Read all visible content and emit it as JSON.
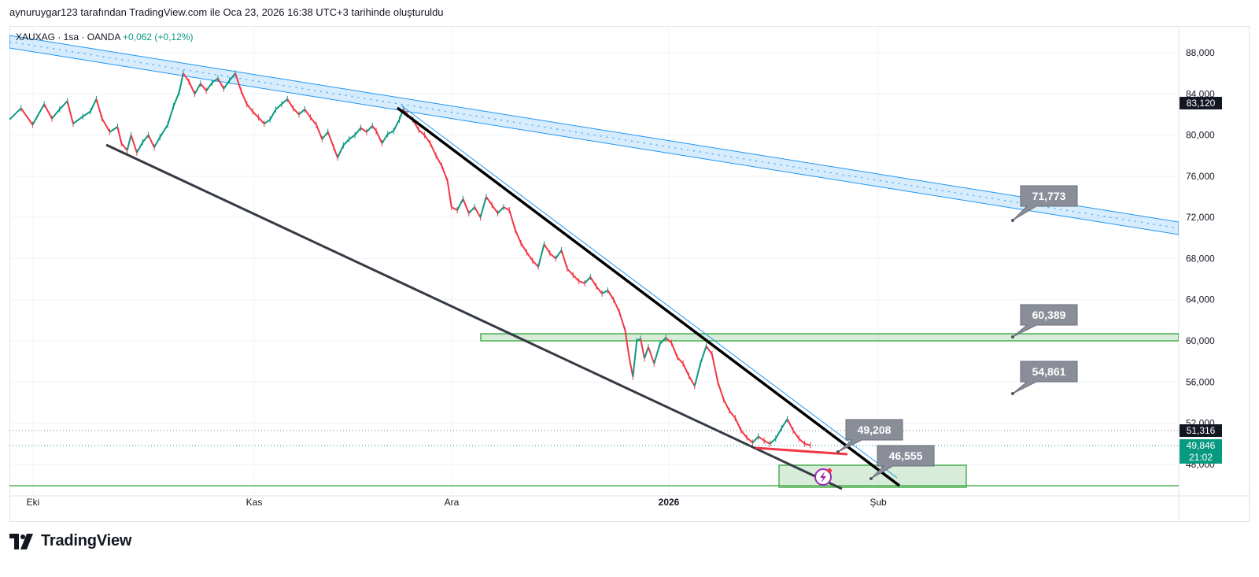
{
  "header": {
    "attribution": "aynuruygar123 tarafından TradingView.com ile Oca 23, 2026 16:38 UTC+3 tarihinde oluşturuldu"
  },
  "legend": {
    "symbol": "XAUXAG · 1sa · OANDA",
    "change": "+0,062 (+0,12%)"
  },
  "brand": {
    "name": "TradingView"
  },
  "colors": {
    "up": "#089981",
    "down": "#f23645",
    "channel": "#2196f3",
    "zone": "#4caf50",
    "trend": "#131722",
    "red_line": "#f23645",
    "callout": "#787b86"
  },
  "chart_data": {
    "type": "line",
    "title": "",
    "ylim": [
      44000,
      90000
    ],
    "y_ticks": [
      "88,000",
      "84,000",
      "80,000",
      "76,000",
      "72,000",
      "68,000",
      "64,000",
      "60,000",
      "56,000",
      "52,000",
      "48,000"
    ],
    "x_ticks": [
      "Eki",
      "Kas",
      "Ara",
      "2026",
      "Şub"
    ],
    "price_badges": [
      {
        "label": "83,120",
        "value": 83120,
        "style": "dark"
      },
      {
        "label": "51,316",
        "value": 51316,
        "style": "dark"
      },
      {
        "label": "49,846",
        "value": 49846,
        "style": "green"
      },
      {
        "label": "21:02",
        "value": 48400,
        "style": "green"
      }
    ],
    "price_path": [
      [
        0,
        81500
      ],
      [
        6,
        82600
      ],
      [
        12,
        81000
      ],
      [
        18,
        83000
      ],
      [
        22,
        81600
      ],
      [
        26,
        82500
      ],
      [
        30,
        83300
      ],
      [
        33,
        81100
      ],
      [
        38,
        81800
      ],
      [
        42,
        82300
      ],
      [
        45,
        83500
      ],
      [
        48,
        81600
      ],
      [
        52,
        80300
      ],
      [
        56,
        80800
      ],
      [
        58,
        79200
      ],
      [
        61,
        78500
      ],
      [
        63,
        80000
      ],
      [
        66,
        78300
      ],
      [
        69,
        79300
      ],
      [
        72,
        80000
      ],
      [
        75,
        78800
      ],
      [
        78,
        79800
      ],
      [
        82,
        81000
      ],
      [
        85,
        82800
      ],
      [
        88,
        84200
      ],
      [
        90,
        86000
      ],
      [
        93,
        85200
      ],
      [
        96,
        84000
      ],
      [
        99,
        85000
      ],
      [
        102,
        84300
      ],
      [
        105,
        85100
      ],
      [
        108,
        85500
      ],
      [
        111,
        84500
      ],
      [
        114,
        85300
      ],
      [
        117,
        86000
      ],
      [
        120,
        84300
      ],
      [
        123,
        83000
      ],
      [
        126,
        82300
      ],
      [
        129,
        81700
      ],
      [
        132,
        81100
      ],
      [
        135,
        81500
      ],
      [
        138,
        82500
      ],
      [
        141,
        83000
      ],
      [
        144,
        83500
      ],
      [
        147,
        82600
      ],
      [
        150,
        82000
      ],
      [
        153,
        82500
      ],
      [
        156,
        81700
      ],
      [
        159,
        81000
      ],
      [
        162,
        79600
      ],
      [
        165,
        80300
      ],
      [
        168,
        78800
      ],
      [
        170,
        77800
      ],
      [
        173,
        79000
      ],
      [
        176,
        79600
      ],
      [
        179,
        80000
      ],
      [
        182,
        80700
      ],
      [
        185,
        80300
      ],
      [
        188,
        80900
      ],
      [
        190,
        80400
      ],
      [
        193,
        79200
      ],
      [
        196,
        80100
      ],
      [
        199,
        80400
      ],
      [
        202,
        81500
      ],
      [
        204,
        82500
      ],
      [
        206,
        82000
      ],
      [
        209,
        81500
      ],
      [
        212,
        80500
      ],
      [
        215,
        80000
      ],
      [
        218,
        79200
      ],
      [
        221,
        78000
      ],
      [
        224,
        77000
      ],
      [
        227,
        75500
      ],
      [
        229,
        73000
      ],
      [
        232,
        72700
      ],
      [
        235,
        73800
      ],
      [
        238,
        72400
      ],
      [
        241,
        73000
      ],
      [
        244,
        72000
      ],
      [
        247,
        74000
      ],
      [
        250,
        73200
      ],
      [
        253,
        72400
      ],
      [
        256,
        73000
      ],
      [
        259,
        72700
      ],
      [
        262,
        70800
      ],
      [
        265,
        69500
      ],
      [
        268,
        68600
      ],
      [
        271,
        67800
      ],
      [
        274,
        67200
      ],
      [
        277,
        69400
      ],
      [
        280,
        68500
      ],
      [
        283,
        68000
      ],
      [
        286,
        68800
      ],
      [
        289,
        67000
      ],
      [
        292,
        66400
      ],
      [
        295,
        65800
      ],
      [
        298,
        65600
      ],
      [
        301,
        66200
      ],
      [
        304,
        65300
      ],
      [
        307,
        64600
      ],
      [
        310,
        64900
      ],
      [
        313,
        64000
      ],
      [
        316,
        62800
      ],
      [
        319,
        61000
      ],
      [
        321,
        58500
      ],
      [
        323,
        56500
      ],
      [
        325,
        60000
      ],
      [
        327,
        60200
      ],
      [
        329,
        58300
      ],
      [
        331,
        59400
      ],
      [
        334,
        57800
      ],
      [
        337,
        59700
      ],
      [
        340,
        60300
      ],
      [
        343,
        59800
      ],
      [
        346,
        58400
      ],
      [
        349,
        57800
      ],
      [
        352,
        56600
      ],
      [
        355,
        55600
      ],
      [
        358,
        57800
      ],
      [
        361,
        59500
      ],
      [
        364,
        58700
      ],
      [
        367,
        56000
      ],
      [
        370,
        54300
      ],
      [
        373,
        53200
      ],
      [
        376,
        52500
      ],
      [
        379,
        51300
      ],
      [
        382,
        50600
      ],
      [
        385,
        50100
      ],
      [
        388,
        50700
      ],
      [
        391,
        50300
      ],
      [
        394,
        50000
      ],
      [
        397,
        50500
      ],
      [
        400,
        51500
      ],
      [
        403,
        52400
      ],
      [
        406,
        51300
      ],
      [
        409,
        50500
      ],
      [
        412,
        50000
      ],
      [
        415,
        49850
      ]
    ],
    "x_path_scale": [
      12,
      1030
    ],
    "annotations": [
      {
        "label": "71,773",
        "value": 71773
      },
      {
        "label": "60,389",
        "value": 60389
      },
      {
        "label": "54,861",
        "value": 54861
      },
      {
        "label": "49,208",
        "value": 49208
      },
      {
        "label": "46,555",
        "value": 46555
      }
    ],
    "grid": true,
    "legend_position": "top-left"
  }
}
